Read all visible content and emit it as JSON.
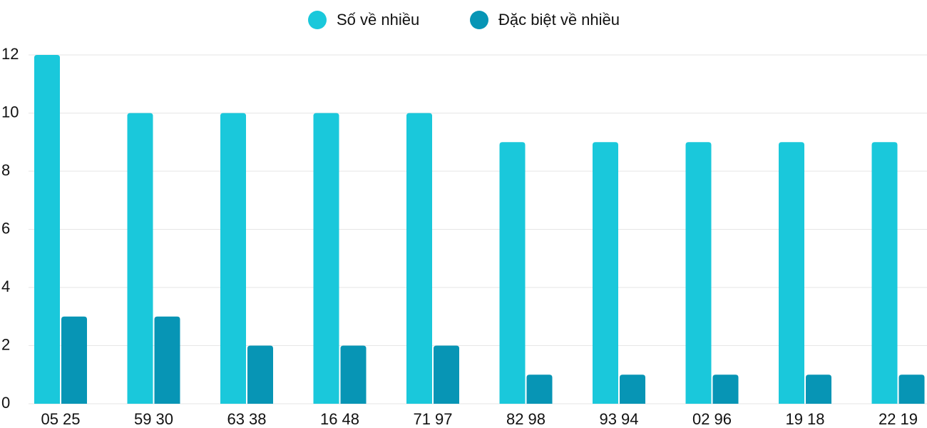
{
  "chart_data": {
    "type": "bar",
    "categories": [
      "05 25",
      "59 30",
      "63 38",
      "16 48",
      "71 97",
      "82 98",
      "93 94",
      "02 96",
      "19 18",
      "22 19"
    ],
    "series": [
      {
        "name": "Số về nhiều",
        "color": "#1ac8db",
        "values": [
          12,
          10,
          10,
          10,
          10,
          9,
          9,
          9,
          9,
          9
        ]
      },
      {
        "name": "Đặc biệt về nhiều",
        "color": "#0795b5",
        "values": [
          3,
          3,
          2,
          2,
          2,
          1,
          1,
          1,
          1,
          1
        ]
      }
    ],
    "ylim": [
      0,
      12
    ],
    "yticks": [
      0,
      2,
      4,
      6,
      8,
      10,
      12
    ],
    "grid": true,
    "legend": "top"
  }
}
